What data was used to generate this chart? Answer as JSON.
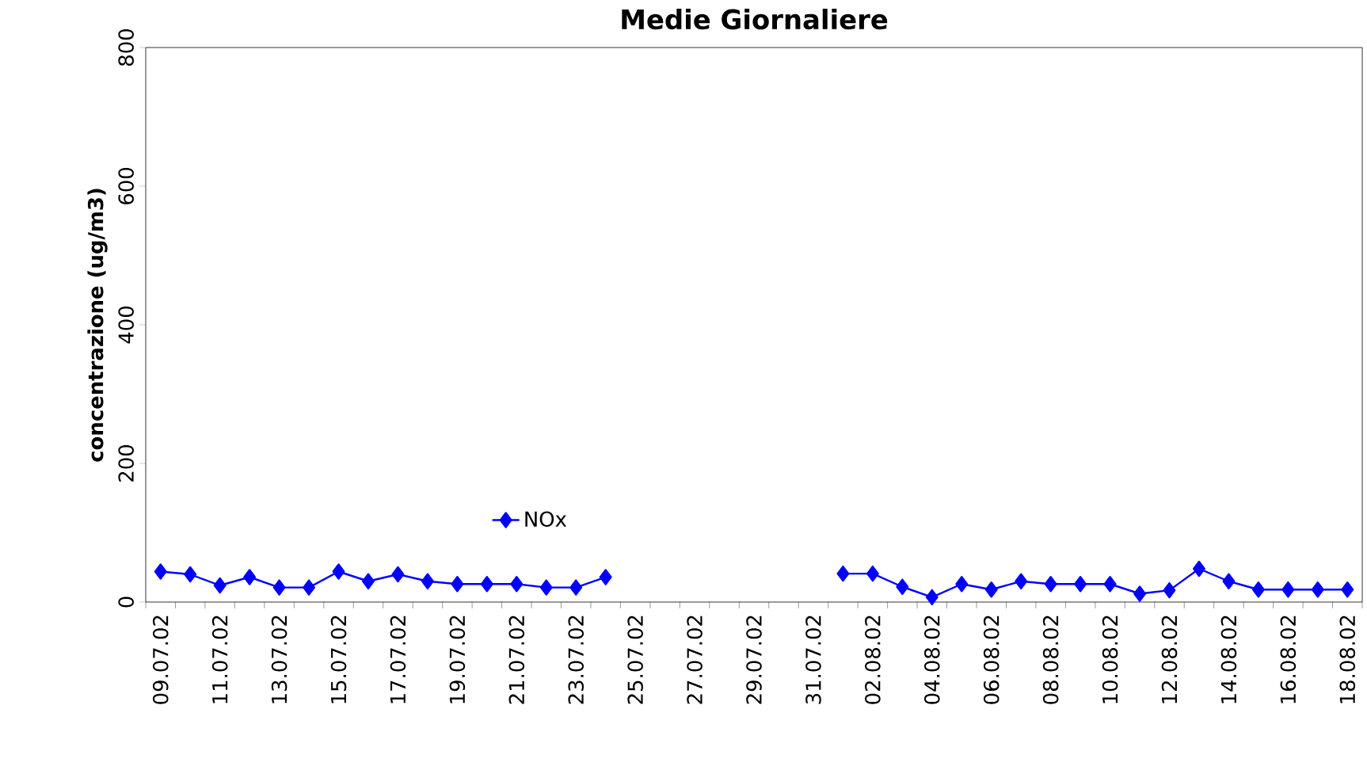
{
  "chart_data": {
    "type": "line",
    "title": "Medie Giornaliere",
    "ylabel": "concentrazione (ug/m3)",
    "categories": [
      "09.07.02",
      null,
      "11.07.02",
      null,
      "13.07.02",
      null,
      "15.07.02",
      null,
      "17.07.02",
      null,
      "19.07.02",
      null,
      "21.07.02",
      null,
      "23.07.02",
      null,
      "25.07.02",
      null,
      "27.07.02",
      null,
      "29.07.02",
      null,
      "31.07.02",
      null,
      "02.08.02",
      null,
      "04.08.02",
      null,
      "06.08.02",
      null,
      "08.08.02",
      null,
      "10.08.02",
      null,
      "12.08.02",
      null,
      "14.08.02",
      null,
      "16.08.02",
      null,
      "18.08.02"
    ],
    "series": [
      {
        "name": "NOx",
        "color": "#0000ff",
        "values": [
          44,
          40,
          24,
          36,
          21,
          21,
          44,
          30,
          40,
          30,
          26,
          26,
          26,
          21,
          21,
          36,
          null,
          null,
          null,
          null,
          null,
          null,
          null,
          41,
          41,
          22,
          7,
          26,
          18,
          30,
          26,
          26,
          26,
          12,
          17,
          48,
          30,
          18,
          18,
          18,
          18
        ]
      }
    ],
    "ylim": [
      0,
      800
    ],
    "yticks": [
      0,
      200,
      400,
      600,
      800
    ],
    "grid": false,
    "legend": "bottom left",
    "marker": "diamond",
    "line_style": "solid"
  }
}
